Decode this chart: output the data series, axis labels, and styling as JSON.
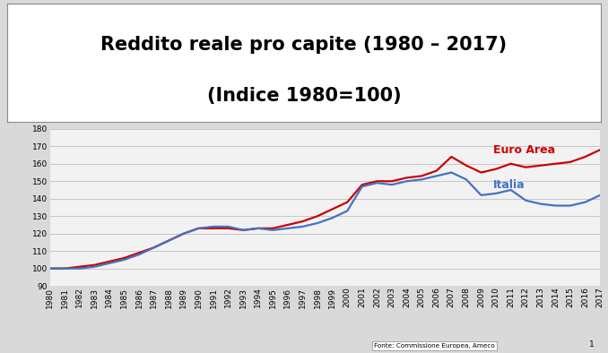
{
  "title_line1": "Reddito reale pro capite (1980 – 2017)",
  "title_line2": "(Indice 1980=100)",
  "years": [
    1980,
    1981,
    1982,
    1983,
    1984,
    1985,
    1986,
    1987,
    1988,
    1989,
    1990,
    1991,
    1992,
    1993,
    1994,
    1995,
    1996,
    1997,
    1998,
    1999,
    2000,
    2001,
    2002,
    2003,
    2004,
    2005,
    2006,
    2007,
    2008,
    2009,
    2010,
    2011,
    2012,
    2013,
    2014,
    2015,
    2016,
    2017
  ],
  "italia": [
    100,
    100,
    100,
    101,
    103,
    105,
    108,
    112,
    116,
    120,
    123,
    124,
    124,
    122,
    123,
    122,
    123,
    124,
    126,
    129,
    133,
    147,
    149,
    148,
    150,
    151,
    153,
    155,
    151,
    142,
    143,
    145,
    139,
    137,
    136,
    136,
    138,
    142
  ],
  "euro_area": [
    100,
    100,
    101,
    102,
    104,
    106,
    109,
    112,
    116,
    120,
    123,
    123,
    123,
    122,
    123,
    123,
    125,
    127,
    130,
    134,
    138,
    148,
    150,
    150,
    152,
    153,
    156,
    164,
    159,
    155,
    157,
    160,
    158,
    159,
    160,
    161,
    164,
    168
  ],
  "italia_color": "#4472C4",
  "euro_area_color": "#CC0000",
  "label_italia": "Italia",
  "label_euro_area": "Euro Area",
  "fonte": "Fonte: Commissione Europea, Ameco",
  "page_num": "1",
  "bg_color": "#D9D9D9",
  "title_box_color": "#FFFFFF",
  "chart_bg_color": "#F2F2F2",
  "grid_color": "#BFBFBF",
  "ylim": [
    90,
    180
  ],
  "yticks": [
    90,
    100,
    110,
    120,
    130,
    140,
    150,
    160,
    170,
    180
  ],
  "line_width": 1.6,
  "title_fontsize": 15,
  "tick_fontsize": 6.5,
  "label_fontsize": 9
}
